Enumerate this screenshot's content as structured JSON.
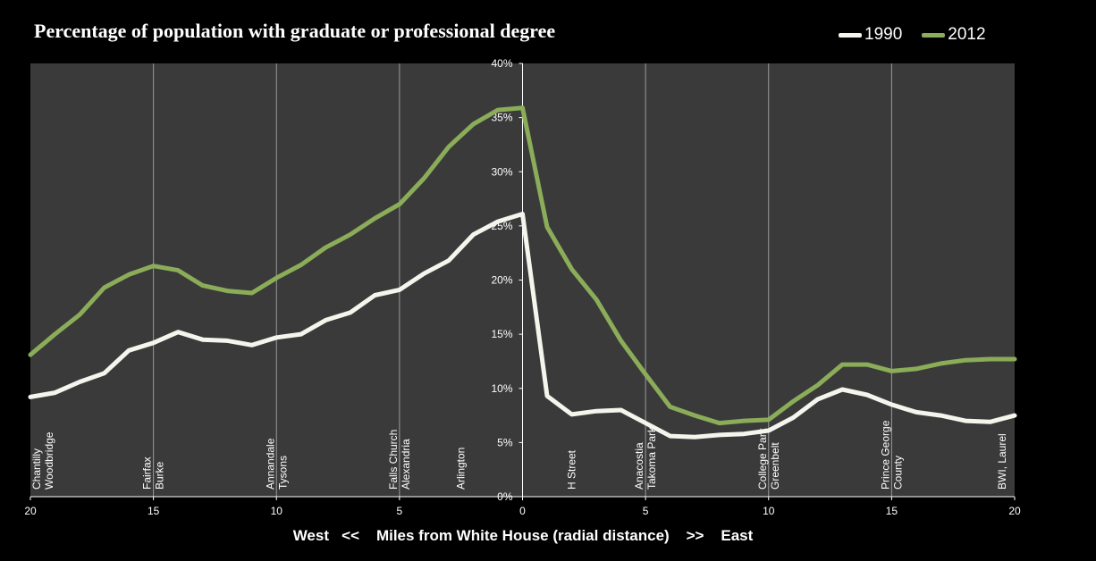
{
  "chart_data": {
    "type": "line",
    "title": "Percentage of population with graduate or professional degree",
    "xlabel_left": "West",
    "xlabel_left_arrow": "<<",
    "xlabel": "Miles from White House (radial distance)",
    "xlabel_right_arrow": ">>",
    "xlabel_right": "East",
    "x_ticks": [
      "20",
      "15",
      "10",
      "5",
      "0",
      "5",
      "10",
      "15",
      "20"
    ],
    "y_ticks": [
      "0%",
      "5%",
      "10%",
      "15%",
      "20%",
      "25%",
      "30%",
      "35%",
      "40%"
    ],
    "xlim": [
      -20,
      20
    ],
    "ylim": [
      0,
      40
    ],
    "grid": "vertical",
    "legend_position": "top-right",
    "colors": {
      "background": "#000000",
      "plot_area": "#3a3a3a",
      "gridline": "#9a9a9a"
    },
    "place_labels": [
      {
        "x": -19.5,
        "lines": [
          "Chantilly",
          "Woodbridge"
        ]
      },
      {
        "x": -15,
        "lines": [
          "Fairfax",
          "Burke"
        ]
      },
      {
        "x": -10,
        "lines": [
          "Annandale",
          "Tysons"
        ]
      },
      {
        "x": -5,
        "lines": [
          "Falls Church",
          "Alexandria"
        ]
      },
      {
        "x": -2.5,
        "lines": [
          "Arlington"
        ]
      },
      {
        "x": 2,
        "lines": [
          "H Street"
        ]
      },
      {
        "x": 5,
        "lines": [
          "Anacostia",
          "Takoma Park"
        ]
      },
      {
        "x": 10,
        "lines": [
          "College Park",
          "Greenbelt"
        ]
      },
      {
        "x": 15,
        "lines": [
          "Prince George",
          "County"
        ]
      },
      {
        "x": 19.5,
        "lines": [
          "BWI, Laurel"
        ]
      }
    ],
    "x": [
      -20,
      -19,
      -18,
      -17,
      -16,
      -15,
      -14,
      -13,
      -12,
      -11,
      -10,
      -9,
      -8,
      -7,
      -6,
      -5,
      -4,
      -3,
      -2,
      -1,
      0,
      1,
      2,
      3,
      4,
      5,
      6,
      7,
      8,
      9,
      10,
      11,
      12,
      13,
      14,
      15,
      16,
      17,
      18,
      19,
      20
    ],
    "series": [
      {
        "name": "1990",
        "color": "#f5f5ee",
        "values": [
          9.2,
          9.6,
          10.6,
          11.4,
          13.5,
          14.2,
          15.2,
          14.5,
          14.4,
          14.0,
          14.7,
          15.0,
          16.3,
          17.0,
          18.6,
          19.1,
          20.6,
          21.8,
          24.2,
          25.4,
          26.1,
          9.3,
          7.6,
          7.9,
          8.0,
          6.8,
          5.6,
          5.5,
          5.7,
          5.8,
          6.1,
          7.3,
          9.0,
          9.9,
          9.4,
          8.5,
          7.8,
          7.5,
          7.0,
          6.9,
          7.5
        ]
      },
      {
        "name": "2012",
        "color": "#8bac58",
        "values": [
          13.1,
          15.0,
          16.8,
          19.3,
          20.5,
          21.3,
          20.9,
          19.5,
          19.0,
          18.8,
          20.2,
          21.4,
          23.0,
          24.2,
          25.7,
          27.0,
          29.4,
          32.3,
          34.4,
          35.7,
          35.9,
          24.9,
          21.0,
          18.2,
          14.4,
          11.3,
          8.3,
          7.5,
          6.8,
          7.0,
          7.1,
          8.8,
          10.3,
          12.2,
          12.2,
          11.6,
          11.8,
          12.3,
          12.6,
          12.7,
          12.7
        ]
      }
    ]
  }
}
